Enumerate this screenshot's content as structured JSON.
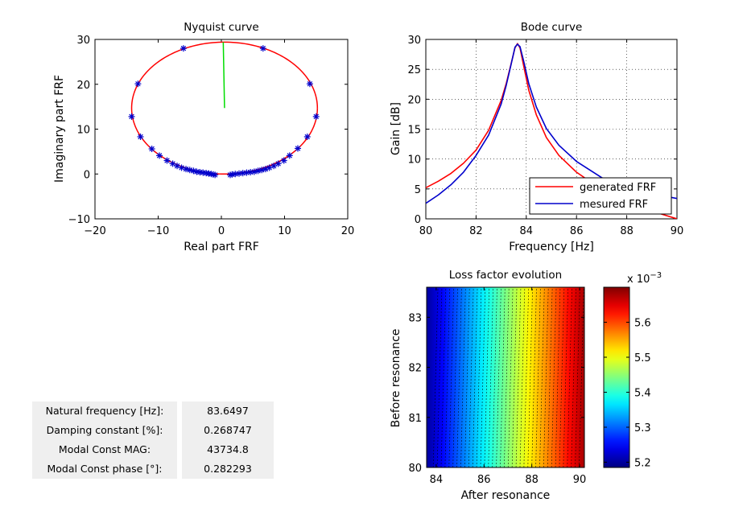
{
  "info_table": [
    {
      "label": "Natural frequency [Hz]:",
      "value": "83.6497"
    },
    {
      "label": "Damping constant [%]:",
      "value": "0.268747"
    },
    {
      "label": "Modal Const MAG:",
      "value": "43734.8"
    },
    {
      "label": "Modal Const phase [°]:",
      "value": "0.282293"
    }
  ],
  "chart_data": [
    {
      "id": "nyquist",
      "type": "line",
      "title": "Nyquist curve",
      "xlabel": "Real part FRF",
      "ylabel": "Imaginary part FRF",
      "xlim": [
        -20,
        20
      ],
      "ylim": [
        -10,
        30
      ],
      "xticks": [
        -20,
        -10,
        0,
        10,
        20
      ],
      "yticks": [
        -10,
        0,
        10,
        20,
        30
      ],
      "xtick_labels": [
        "−20",
        "−10",
        "0",
        "10",
        "20"
      ],
      "ytick_labels": [
        "−10",
        "0",
        "10",
        "20",
        "30"
      ],
      "circle": {
        "center": [
          0.5,
          14.7
        ],
        "radius": 14.7,
        "color": "#ff0000"
      },
      "radius_line": {
        "x": [
          0.3,
          0.5
        ],
        "y": [
          29.4,
          14.7
        ],
        "color": "#00dd00"
      },
      "markers": {
        "color": "#0000cc",
        "points": [
          [
            -6.0,
            28.0
          ],
          [
            6.6,
            28.0
          ],
          [
            -13.2,
            20.1
          ],
          [
            14.0,
            20.1
          ],
          [
            -14.2,
            12.8
          ],
          [
            15.0,
            12.8
          ],
          [
            -12.8,
            8.3
          ],
          [
            13.6,
            8.3
          ],
          [
            -11.0,
            5.6
          ],
          [
            12.1,
            5.7
          ],
          [
            -9.8,
            4.1
          ],
          [
            10.8,
            4.1
          ],
          [
            -8.6,
            3.0
          ],
          [
            9.9,
            3.0
          ],
          [
            -7.7,
            2.3
          ],
          [
            9.0,
            2.3
          ],
          [
            -7.0,
            1.8
          ],
          [
            8.3,
            1.8
          ],
          [
            -6.3,
            1.4
          ],
          [
            7.6,
            1.4
          ],
          [
            -5.6,
            1.1
          ],
          [
            7.0,
            1.1
          ],
          [
            -5.0,
            0.9
          ],
          [
            6.4,
            0.9
          ],
          [
            -4.4,
            0.7
          ],
          [
            5.8,
            0.7
          ],
          [
            -3.9,
            0.5
          ],
          [
            5.2,
            0.5
          ],
          [
            -3.4,
            0.4
          ],
          [
            4.6,
            0.4
          ],
          [
            -2.9,
            0.3
          ],
          [
            4.0,
            0.3
          ],
          [
            -2.4,
            0.2
          ],
          [
            3.4,
            0.2
          ],
          [
            -2.0,
            0.1
          ],
          [
            2.8,
            0.1
          ],
          [
            -1.6,
            0.0
          ],
          [
            2.2,
            0.0
          ],
          [
            -1.3,
            -0.1
          ],
          [
            1.7,
            -0.1
          ],
          [
            -1.0,
            -0.2
          ],
          [
            1.4,
            -0.2
          ]
        ]
      }
    },
    {
      "id": "bode",
      "type": "line",
      "title": "Bode curve",
      "xlabel": "Frequency  [Hz]",
      "ylabel": "Gain  [dB]",
      "xlim": [
        80,
        90
      ],
      "ylim": [
        0,
        30
      ],
      "xticks": [
        80,
        82,
        84,
        86,
        88,
        90
      ],
      "yticks": [
        0,
        5,
        10,
        15,
        20,
        25,
        30
      ],
      "grid": true,
      "legend_position": "bottom-right",
      "series": [
        {
          "name": "generated FRF",
          "color": "#ff0000",
          "x": [
            80,
            80.5,
            81,
            81.5,
            82,
            82.5,
            83,
            83.2,
            83.4,
            83.55,
            83.65,
            83.75,
            83.9,
            84.1,
            84.4,
            84.8,
            85.3,
            86,
            87,
            88,
            89,
            90
          ],
          "y": [
            5.2,
            6.3,
            7.6,
            9.3,
            11.5,
            14.8,
            19.8,
            22.6,
            26.0,
            28.6,
            29.3,
            28.6,
            25.5,
            21.5,
            17.4,
            13.6,
            10.6,
            7.8,
            4.9,
            2.9,
            1.3,
            0.0
          ]
        },
        {
          "name": "mesured FRF",
          "color": "#0000cc",
          "x": [
            80,
            80.5,
            81,
            81.5,
            82,
            82.5,
            83,
            83.2,
            83.4,
            83.55,
            83.65,
            83.75,
            83.9,
            84.1,
            84.4,
            84.8,
            85.3,
            86,
            87,
            88,
            89,
            90
          ],
          "y": [
            2.6,
            4.0,
            5.7,
            7.8,
            10.6,
            14.0,
            19.2,
            22.3,
            25.9,
            28.7,
            29.2,
            28.8,
            26.3,
            22.6,
            18.7,
            15.1,
            12.3,
            9.6,
            6.9,
            5.0,
            4.2,
            3.4
          ]
        }
      ]
    },
    {
      "id": "loss_factor",
      "type": "heatmap",
      "title": "Loss factor evolution",
      "xlabel": "After resonance",
      "ylabel": "Before resonance",
      "xlim": [
        83.6,
        90.2
      ],
      "ylim": [
        80,
        83.6
      ],
      "xticks": [
        84,
        86,
        88,
        90
      ],
      "yticks": [
        80,
        81,
        82,
        83
      ],
      "colorbar": {
        "range": [
          5.185,
          5.7
        ],
        "ticks": [
          5.2,
          5.3,
          5.4,
          5.5,
          5.6
        ],
        "exponent_label": "x 10",
        "exponent": "−3"
      },
      "value_model": {
        "at_x_min": 5.2,
        "at_x_max": 5.68,
        "y_effect": 0.03
      }
    }
  ]
}
